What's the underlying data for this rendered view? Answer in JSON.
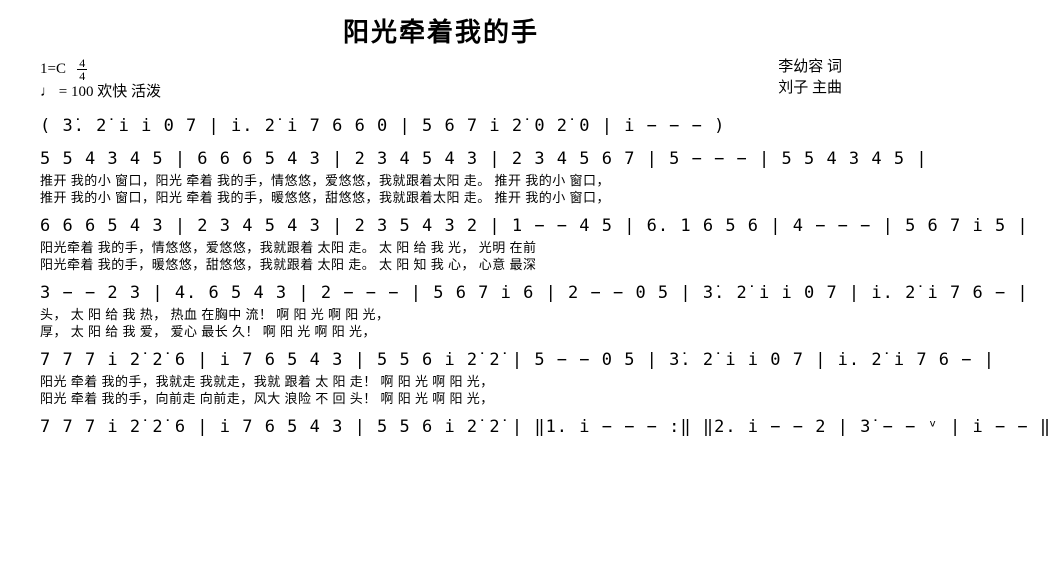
{
  "title": "阳光牵着我的手",
  "header": {
    "key": "1=C",
    "time_top": "4",
    "time_bottom": "4",
    "tempo": "♩ = 100 欢快 活泼",
    "lyricist": "李幼容 词",
    "composer": "刘子 主曲"
  },
  "styling": {
    "background": "#ffffff",
    "text_color": "#000000",
    "title_fontsize": 26,
    "notation_fontsize": 17,
    "lyrics_fontsize": 13,
    "font_family": "SimSun"
  },
  "rows": [
    {
      "notation": "( 3̇. 2̇ i i 0 7 | i. 2̇ i 7 6 6  0  | 5 6 7 i 2̇ 0 2̇ 0 | i − − − )",
      "lyrics": []
    },
    {
      "notation": "5 5 4 3 4 5 | 6 6 6 5 4 3 | 2 3 4 5 4 3 | 2 3 4 5 6 7 | 5 − − − | 5 5 4 3 4 5 |",
      "lyrics": [
        "推开 我的小 窗口，阳光 牵着 我的手，情悠悠，爱悠悠，我就跟着太阳  走。      推开 我的小 窗口，",
        "推开 我的小 窗口，阳光 牵着 我的手，暖悠悠，甜悠悠，我就跟着太阳  走。      推开 我的小 窗口，"
      ]
    },
    {
      "notation": "6 6 6 5 4 3 | 2 3 4 5 4 3 | 2 3 5 4 3 2 | 1 − − 4 5 | 6. 1 6 5 6 | 4 − − − | 5 6 7 i 5 |",
      "lyrics": [
        "阳光牵着 我的手，情悠悠，爱悠悠，我就跟着 太阳  走。   太 阳  给    我     光，           光明 在前",
        "阳光牵着 我的手，暖悠悠，甜悠悠，我就跟着 太阳  走。   太 阳  知    我     心，           心意 最深"
      ]
    },
    {
      "notation": "3 − − 2 3 | 4. 6 5 4 3 | 2 − − − | 5 6 7 i 6 | 2 − − 0 5 | 3̇. 2̇ i i 0 7 | i. 2̇ i 7 6 − |",
      "lyrics": [
        "头，   太 阳  给    我    热，      热血 在胸中   流！      啊 阳  光  啊      阳     光，",
        "厚，   太 阳  给    我    爱，      爱心   最长    久！      啊 阳  光  啊      阳     光，"
      ]
    },
    {
      "notation": "7 7 7 i 2̇ 2̇ 6 | i 7 6 5 4 3 | 5 5 6 i 2̇ 2̇ | 5 − − 0 5 | 3̇. 2̇ i i 0 7 | i. 2̇ i 7 6 − |",
      "lyrics": [
        "阳光 牵着 我的手，我就走 我就走，我就 跟着 太 阳   走！      啊  阳  光 啊      阳      光，",
        "阳光 牵着 我的手，向前走 向前走，风大 浪险 不 回   头！      啊  阳  光 啊      阳      光，"
      ]
    },
    {
      "notation": "7 7 7 i 2̇ 2̇ 6 | i 7 6 5 4 3 | 5 5 6 i 2̇ 2̇ | ‖1. i − − − :‖ ‖2. i − − 2 | 3̇ − − ᵛ | i − − ‖",
      "lyrics": []
    }
  ]
}
